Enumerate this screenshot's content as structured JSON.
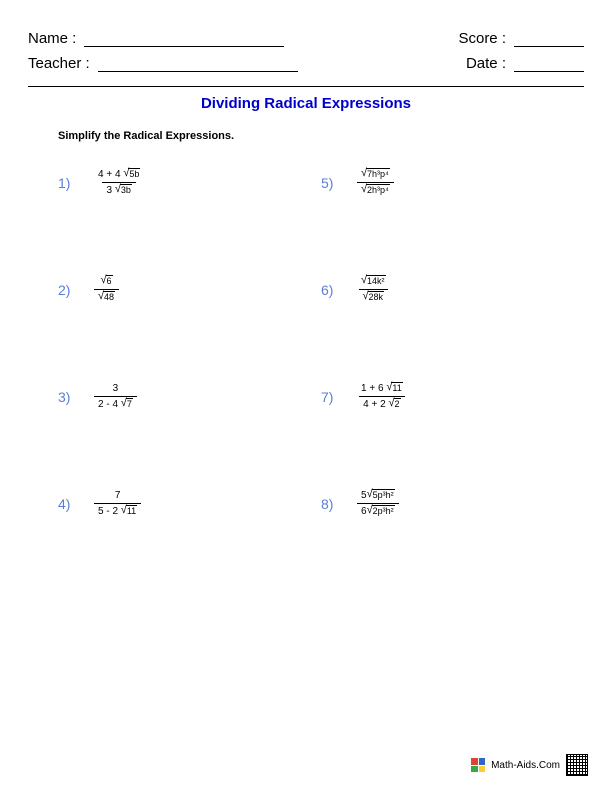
{
  "header": {
    "name_label": "Name :",
    "score_label": "Score :",
    "teacher_label": "Teacher :",
    "date_label": "Date :"
  },
  "title": "Dividing Radical Expressions",
  "instructions": "Simplify the Radical Expressions.",
  "problem_labels": [
    "1)",
    "2)",
    "3)",
    "4)",
    "5)",
    "6)",
    "7)",
    "8)"
  ],
  "problems": [
    {
      "num_pre": "4 + 4 ",
      "num_rad": "5b",
      "den_pre": "3 ",
      "den_rad": "3b"
    },
    {
      "num_pre": "",
      "num_rad": "6",
      "den_pre": "",
      "den_rad": "48"
    },
    {
      "num_plain": "3",
      "den_pre": "2 - 4 ",
      "den_rad": "7"
    },
    {
      "num_plain": "7",
      "den_pre": "5 - 2 ",
      "den_rad": "11"
    },
    {
      "num_pre": "",
      "num_rad": "7h³p⁴",
      "den_pre": "",
      "den_rad": "2h³p⁴"
    },
    {
      "num_pre": "",
      "num_rad": "14k²",
      "den_pre": "",
      "den_rad": "28k"
    },
    {
      "num_pre": "1 + 6 ",
      "num_rad": "11",
      "den_pre": "4 + 2 ",
      "den_rad": "2"
    },
    {
      "num_pre": "5",
      "num_rad": "5p³h²",
      "den_pre": "6",
      "den_rad": "2p³h²"
    }
  ],
  "footer": {
    "site": "Math-Aids.Com"
  },
  "colors": {
    "title": "#0000cc",
    "pnum": "#5a7fd6",
    "text": "#000000",
    "bg": "#ffffff"
  }
}
